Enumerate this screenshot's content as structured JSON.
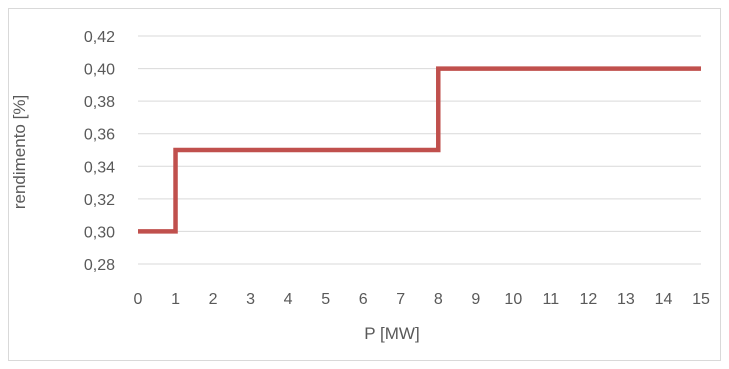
{
  "chart_data": {
    "type": "line",
    "step": true,
    "title": "",
    "xlabel": "P [MW]",
    "ylabel": "rendimento [%]",
    "xlim": [
      0,
      15
    ],
    "ylim": [
      0.28,
      0.42
    ],
    "x_ticks": [
      "0",
      "1",
      "2",
      "3",
      "4",
      "5",
      "6",
      "7",
      "8",
      "9",
      "10",
      "11",
      "12",
      "13",
      "14",
      "15"
    ],
    "y_ticks": [
      "0,28",
      "0,30",
      "0,32",
      "0,34",
      "0,36",
      "0,38",
      "0,40",
      "0,42"
    ],
    "grid": "horizontal",
    "legend": "none",
    "series": [
      {
        "color": "#c0504d",
        "x": [
          0,
          1,
          1,
          8,
          8,
          15
        ],
        "y": [
          0.3,
          0.3,
          0.35,
          0.35,
          0.4,
          0.4
        ]
      }
    ]
  }
}
